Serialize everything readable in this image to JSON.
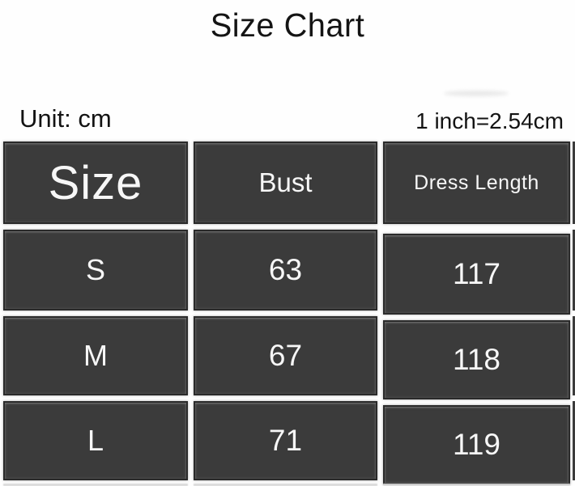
{
  "title": "Size Chart",
  "unit_label": "Unit: cm",
  "conversion_note": "1 inch=2.54cm",
  "colors": {
    "page_bg": "#fefefe",
    "cell_bg": "#3b3b3b",
    "cell_border": "#2a2a2a",
    "cell_text": "#f7f7f7",
    "heading_text": "#141414"
  },
  "chart_data": {
    "type": "table",
    "title": "Size Chart",
    "unit": "cm",
    "note": "1 inch=2.54cm",
    "columns": [
      "Size",
      "Bust",
      "Dress Length"
    ],
    "rows": [
      [
        "S",
        63,
        117
      ],
      [
        "M",
        67,
        118
      ],
      [
        "L",
        71,
        119
      ]
    ]
  },
  "table": {
    "header": [
      "Size",
      "Bust",
      "Dress Length"
    ],
    "rows": [
      {
        "cells": [
          "S",
          "63",
          "117"
        ]
      },
      {
        "cells": [
          "M",
          "67",
          "118"
        ]
      },
      {
        "cells": [
          "L",
          "71",
          "119"
        ]
      }
    ]
  }
}
